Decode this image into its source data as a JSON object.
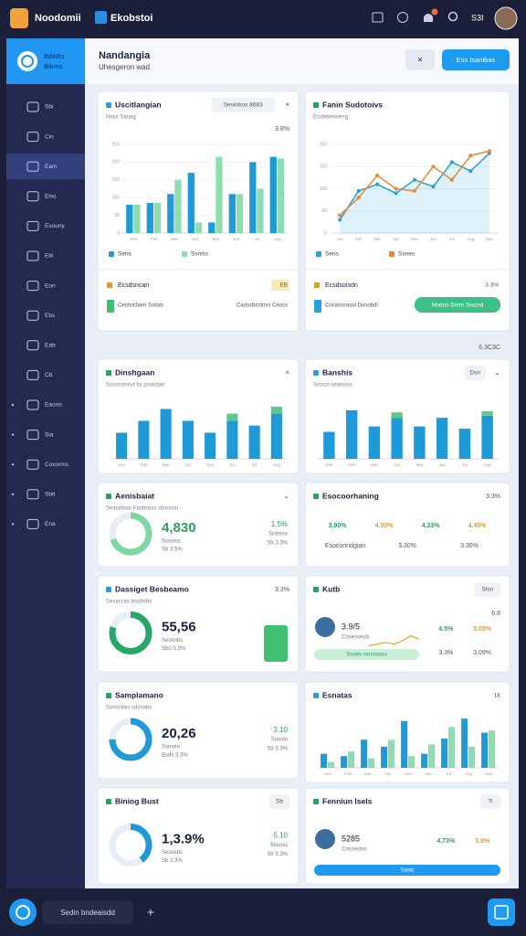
{
  "header": {
    "brand": "Noodomii",
    "tab": "Ekobstoi",
    "user": "S3I"
  },
  "sidebar": {
    "title": "Bibidts",
    "subtitle": "Bikms",
    "items": [
      "Sbi",
      "Cin",
      "Eam",
      "Eiso",
      "Esouny",
      "Ebi",
      "Eon",
      "Ebs",
      "Eab",
      "Cb",
      "Eaono",
      "Sia",
      "Coxorms",
      "Sbti",
      "Ena"
    ],
    "active": 2
  },
  "page": {
    "title": "Nandangia",
    "subtitle": "Uhesgeron wad",
    "close": "×",
    "button": "Ess Isanibas"
  },
  "note": "6.3C3C",
  "cards": [
    {
      "title": "Uscitlangian",
      "chip": "Sesinbos 8683",
      "close": "×",
      "subtitle": "Nass Sanag",
      "stat": "3.8%",
      "chart": {
        "type": "bar",
        "categories": [
          "Sen",
          "Feb",
          "Mar",
          "Apr",
          "Mai",
          "Jun",
          "Jul",
          "Aug"
        ],
        "series": [
          {
            "name": "Sens",
            "color": "#1e9bd7",
            "values": [
              80,
              85,
              110,
              170,
              30,
              110,
              200,
              215
            ]
          },
          {
            "name": "Ssniss",
            "color": "#8fdcb0",
            "values": [
              80,
              85,
              150,
              30,
              215,
              110,
              125,
              210
            ]
          }
        ],
        "ylim": [
          0,
          250
        ],
        "yticks": [
          0,
          50,
          100,
          150,
          200,
          250
        ]
      },
      "foot_title": "Ecsdsncan",
      "foot_badge": "EB",
      "foot_left": "Cetdsiclaen Ssitab",
      "foot_right": "Cadssbicdoss Ceoss"
    },
    {
      "title": "Fanin Sudotoivs",
      "subtitle": "Ecidebeoveng",
      "chart": {
        "type": "line",
        "categories": [
          "Jan",
          "Feb",
          "Mar",
          "Apr",
          "Mai",
          "Jun",
          "Jul",
          "Aug",
          "Sep"
        ],
        "series": [
          {
            "name": "Sens",
            "color": "#2a9fd6",
            "values": [
              30,
              95,
              110,
              90,
              120,
              105,
              160,
              140,
              180
            ]
          },
          {
            "name": "Ssnes",
            "color": "#e8872f",
            "values": [
              40,
              80,
              130,
              100,
              95,
              150,
              120,
              175,
              185
            ]
          }
        ],
        "ylim": [
          0,
          200
        ],
        "yticks": [
          0,
          50,
          100,
          150,
          200
        ]
      },
      "foot_title": "Ecsdsoisdn",
      "foot_badge": "3.3%",
      "foot_left": "Cosasssasid Dosobdl",
      "foot_button": "Nodsn Ssrin Siscnd"
    },
    {
      "title": "Dinshgaan",
      "subtitle": "Sossnoresd bs psondan",
      "close": "×",
      "chart": {
        "type": "bar",
        "stacked": true,
        "categories": [
          "Sen",
          "Feb",
          "Mar",
          "Apr",
          "Mai",
          "Jun",
          "Jul",
          "Aug"
        ],
        "series": [
          {
            "color": "#1e9bd7",
            "values": [
              22,
              32,
              42,
              32,
              22,
              32,
              28,
              38
            ]
          },
          {
            "color": "#5cc98a",
            "values": [
              0,
              0,
              0,
              0,
              0,
              6,
              0,
              6
            ]
          }
        ],
        "ylim": [
          0,
          50
        ]
      }
    },
    {
      "title": "Banshis",
      "subtitle": "Sisson seansiss",
      "chip": "Dsn",
      "close": "⌄",
      "chart": {
        "type": "bar",
        "stacked": true,
        "categories": [
          "Sen",
          "Feb",
          "Mar",
          "Apr",
          "Mai",
          "Jun",
          "Jul",
          "Aug"
        ],
        "series": [
          {
            "color": "#1e9bd7",
            "values": [
              25,
              45,
              30,
              38,
              30,
              38,
              28,
              40
            ]
          },
          {
            "color": "#5cc98a",
            "values": [
              0,
              0,
              0,
              5,
              0,
              0,
              0,
              4
            ]
          }
        ],
        "ylim": [
          0,
          55
        ]
      }
    },
    {
      "title": "Aenisbaiat",
      "subtitle": "Seasidbas Fasbsoss sbsnssn",
      "close": "⌄",
      "chart": {
        "type": "donut",
        "value": 70,
        "color": "#7fd6a4"
      },
      "big": "4,830",
      "lines": [
        "Sssoiss",
        "Sb 3.5%"
      ],
      "notes": [
        "1.5%",
        "Sisbsso",
        "Sb 3.3%"
      ]
    },
    {
      "title": "Esocoorhaning",
      "stat": "3.3%",
      "rows": [
        [
          "3.90%",
          "4.30%",
          "4.33%",
          "4.40%"
        ],
        [
          "Esoconndgian",
          "3.30%",
          "3.30%"
        ]
      ]
    },
    {
      "title": "Dassiget Besbeamo",
      "subtitle": "Sesaccas bsobsbs",
      "stat": "3.3%",
      "chart": {
        "type": "donut",
        "value": 80,
        "color": "#27a86a"
      },
      "big": "55,56",
      "lines": [
        "Seosnbs",
        "Sbo 3.3%"
      ]
    },
    {
      "title": "Kutb",
      "chip": "Sisn",
      "stat": "6.8",
      "big": "3.9/5",
      "lines": [
        "Cosessecls"
      ],
      "chart": {
        "type": "line",
        "series": [
          {
            "color": "#e0a531",
            "values": [
              2,
              3,
              4,
              3,
              5,
              8,
              6
            ]
          }
        ],
        "ylim": [
          0,
          10
        ]
      },
      "pill": "Ssoes nsnoosuo",
      "rows": [
        [
          "4.5%",
          "3.05%"
        ],
        [
          "3.3%",
          "3.09%"
        ]
      ]
    },
    {
      "title": "Samplamano",
      "subtitle": "Sonssbes sdcnobs",
      "chart": {
        "type": "donut",
        "value": 75,
        "color": "#1e9bd7"
      },
      "big": "20,26",
      "lines": [
        "Ssnseo",
        "Esds 3.3%"
      ],
      "notes": [
        "3.10",
        "Sooslo",
        "Sb 3.3%"
      ]
    },
    {
      "title": "Esnatas",
      "stat": "IX",
      "chart": {
        "type": "bar",
        "categories": [
          "Sen",
          "Feb",
          "Mar",
          "Apr",
          "Mai",
          "Jun",
          "Jul",
          "Aug",
          "Sep"
        ],
        "series": [
          {
            "color": "#1e9bd7",
            "values": [
              12,
              10,
              24,
              18,
              40,
              12,
              25,
              42,
              30
            ]
          },
          {
            "color": "#8fdcb0",
            "values": [
              5,
              14,
              8,
              24,
              10,
              20,
              35,
              18,
              32
            ]
          }
        ],
        "ylim": [
          0,
          50
        ]
      }
    },
    {
      "title": "Biniog Bust",
      "chip": "Sb",
      "chart": {
        "type": "donut",
        "value": 40,
        "color": "#1e9bd7"
      },
      "big": "1,3.9%",
      "lines": [
        "Seossbs",
        "Sb 3.3%"
      ],
      "notes": [
        "5.10",
        "Sbsoss",
        "Sb 3.3%"
      ]
    },
    {
      "title": "Fenniun Isels",
      "chip": "Ti",
      "big": "5285",
      "lines": [
        "Cnssesbis"
      ],
      "rows": [
        [
          "4.73%",
          "3.9%"
        ]
      ],
      "pill": "Sasic"
    }
  ],
  "footer": {
    "search": "Sedin bndeaisdd",
    "add": "+"
  }
}
